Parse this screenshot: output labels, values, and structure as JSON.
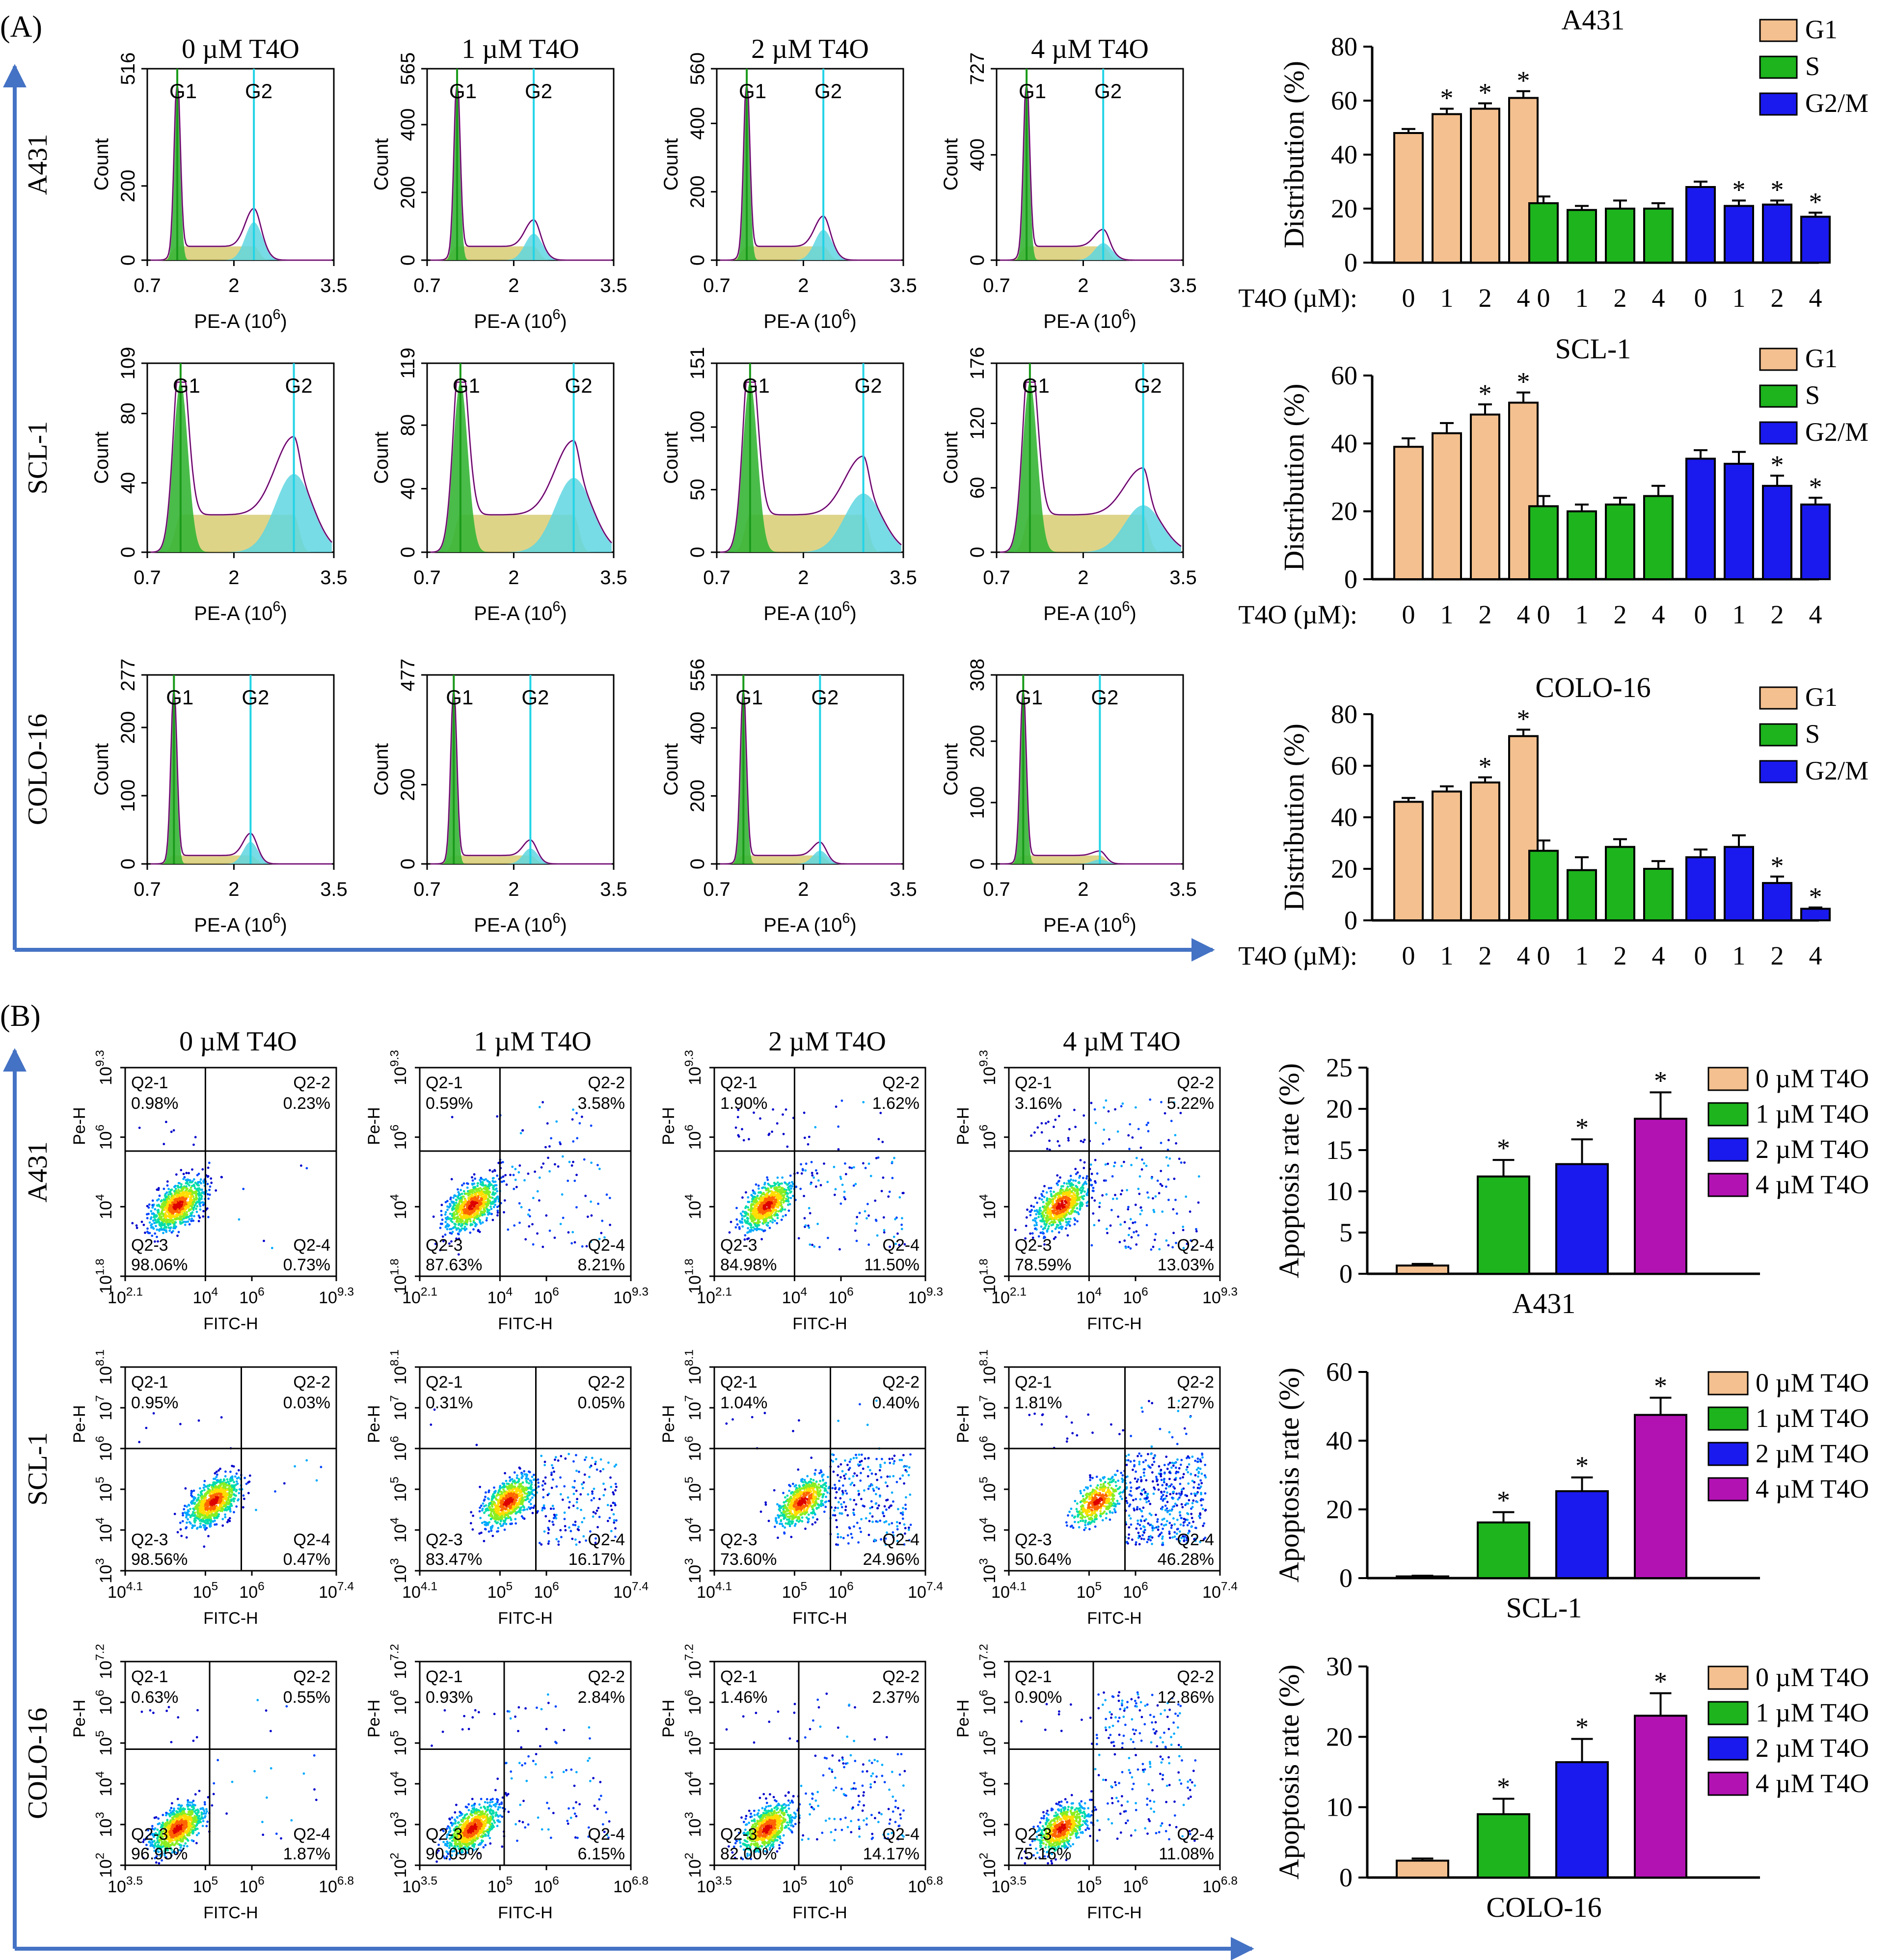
{
  "figure": {
    "panel_a_label": "(A)",
    "panel_b_label": "(B)",
    "colors": {
      "axis_arrow": "#4472c4",
      "G1": "#f4c08f",
      "S": "#1db41d",
      "G2M": "#1a1aee",
      "apop_0": "#f4c08f",
      "apop_1": "#1db41d",
      "apop_2": "#1a1aee",
      "apop_4": "#b312b3",
      "hist_g1": "#36b536",
      "hist_s": "#d6c96a",
      "hist_g2": "#5fd6e0",
      "hist_line": "#cc33cc"
    }
  },
  "cell_lines": [
    "A431",
    "SCL-1",
    "COLO-16"
  ],
  "doses": [
    "0 µM T4O",
    "1 µM T4O",
    "2 µM T4O",
    "4 µM T4O"
  ],
  "cell_cycle": {
    "xlabel": "PE-A  (10",
    "xlabel_exp": "6",
    "xlabel_close": ")",
    "ylabel": "Count",
    "x_ticks": [
      "0.7",
      "2",
      "3.5"
    ],
    "x_ticks_alt": [
      "0.7",
      "2",
      "3.5"
    ],
    "x_ticks_short": [
      "0.7",
      "2",
      "3.5"
    ],
    "peak_labels": [
      "G1",
      "G2"
    ],
    "y_ticks": [
      [
        [
          "516",
          "200",
          "0"
        ],
        [
          "565",
          "400",
          "200",
          "0"
        ],
        [
          "560",
          "400",
          "200",
          "0"
        ],
        [
          "727",
          "400",
          "0"
        ]
      ],
      [
        [
          "109",
          "80",
          "40",
          "0"
        ],
        [
          "119",
          "80",
          "40",
          "0"
        ],
        [
          "151",
          "100",
          "50",
          "0"
        ],
        [
          "176",
          "120",
          "60",
          "0"
        ]
      ],
      [
        [
          "277",
          "200",
          "100",
          "0"
        ],
        [
          "477",
          "200",
          "0"
        ],
        [
          "556",
          "400",
          "200",
          "0"
        ],
        [
          "308",
          "200",
          "100",
          "0"
        ]
      ]
    ]
  },
  "apoptosis_scatter": {
    "xlabel": "FITC-H",
    "ylabel": "Pe-H",
    "quadrant_names": [
      "Q2-1",
      "Q2-2",
      "Q2-3",
      "Q2-4"
    ],
    "x_ticks": [
      [
        "10",
        "10",
        "10",
        "10"
      ],
      [
        "10",
        "10",
        "10",
        "10"
      ],
      [
        "10",
        "10",
        "10",
        "10"
      ]
    ],
    "x_exps": [
      [
        "2.1",
        "4",
        "6",
        "9.3"
      ],
      [
        "4.1",
        "5",
        "6",
        "7.4"
      ],
      [
        "3.5",
        "5",
        "6",
        "6.8"
      ]
    ],
    "y_exps": [
      [
        "9.3",
        "6",
        "4",
        "1.8"
      ],
      [
        "8.1",
        "7",
        "6",
        "5",
        "4",
        "3"
      ],
      [
        "7.2",
        "6",
        "5",
        "4",
        "3",
        "2"
      ]
    ],
    "percentages": [
      [
        [
          "0.98%",
          "0.23%",
          "98.06%",
          "0.73%"
        ],
        [
          "0.59%",
          "3.58%",
          "87.63%",
          "8.21%"
        ],
        [
          "1.90%",
          "1.62%",
          "84.98%",
          "11.50%"
        ],
        [
          "3.16%",
          "5.22%",
          "78.59%",
          "13.03%"
        ]
      ],
      [
        [
          "0.95%",
          "0.03%",
          "98.56%",
          "0.47%"
        ],
        [
          "0.31%",
          "0.05%",
          "83.47%",
          "16.17%"
        ],
        [
          "1.04%",
          "0.40%",
          "73.60%",
          "24.96%"
        ],
        [
          "1.81%",
          "1.27%",
          "50.64%",
          "46.28%"
        ]
      ],
      [
        [
          "0.63%",
          "0.55%",
          "96.95%",
          "1.87%"
        ],
        [
          "0.93%",
          "2.84%",
          "90.09%",
          "6.15%"
        ],
        [
          "1.46%",
          "2.37%",
          "82.00%",
          "14.17%"
        ],
        [
          "0.90%",
          "12.86%",
          "75.16%",
          "11.08%"
        ]
      ]
    ]
  },
  "chart_data": [
    {
      "type": "bar",
      "title": "A431",
      "ylabel": "Distribution (%)",
      "xlabel": "T4O (µM):",
      "groups": [
        "G1",
        "S",
        "G2/M"
      ],
      "categories": [
        "0",
        "1",
        "2",
        "4"
      ],
      "ylim": [
        0,
        80
      ],
      "yticks": [
        0,
        20,
        40,
        60,
        80
      ],
      "series": [
        {
          "name": "G1",
          "values": [
            48,
            55,
            57,
            61
          ],
          "errors": [
            1.5,
            2,
            2,
            2.5
          ],
          "sig": [
            false,
            true,
            true,
            true
          ]
        },
        {
          "name": "S",
          "values": [
            22,
            19.5,
            20,
            20
          ],
          "errors": [
            2.5,
            1.5,
            3,
            2
          ],
          "sig": [
            false,
            false,
            false,
            false
          ]
        },
        {
          "name": "G2/M",
          "values": [
            28,
            21,
            21.5,
            17
          ],
          "errors": [
            2,
            2,
            1.5,
            1.5
          ],
          "sig": [
            false,
            true,
            true,
            true
          ]
        }
      ]
    },
    {
      "type": "bar",
      "title": "SCL-1",
      "ylabel": "Distribution (%)",
      "xlabel": "T4O (µM):",
      "groups": [
        "G1",
        "S",
        "G2/M"
      ],
      "categories": [
        "0",
        "1",
        "2",
        "4"
      ],
      "ylim": [
        0,
        60
      ],
      "yticks": [
        0,
        20,
        40,
        60
      ],
      "series": [
        {
          "name": "G1",
          "values": [
            39,
            43,
            48.5,
            52
          ],
          "errors": [
            2.5,
            3,
            3,
            3
          ],
          "sig": [
            false,
            false,
            true,
            true
          ]
        },
        {
          "name": "S",
          "values": [
            21.5,
            20,
            22,
            24.5
          ],
          "errors": [
            3,
            2,
            2,
            3
          ],
          "sig": [
            false,
            false,
            false,
            false
          ]
        },
        {
          "name": "G2/M",
          "values": [
            35.5,
            34,
            27.5,
            22
          ],
          "errors": [
            2.5,
            3.5,
            3,
            2
          ],
          "sig": [
            false,
            false,
            true,
            true
          ]
        }
      ]
    },
    {
      "type": "bar",
      "title": "COLO-16",
      "ylabel": "Distribution (%)",
      "xlabel": "T4O (µM):",
      "groups": [
        "G1",
        "S",
        "G2/M"
      ],
      "categories": [
        "0",
        "1",
        "2",
        "4"
      ],
      "ylim": [
        0,
        80
      ],
      "yticks": [
        0,
        20,
        40,
        60,
        80
      ],
      "series": [
        {
          "name": "G1",
          "values": [
            46,
            50,
            53.5,
            71.5
          ],
          "errors": [
            1.5,
            2,
            2,
            2.5
          ],
          "sig": [
            false,
            false,
            true,
            true
          ]
        },
        {
          "name": "S",
          "values": [
            27,
            19.5,
            28.5,
            20
          ],
          "errors": [
            4,
            5,
            3,
            3
          ],
          "sig": [
            false,
            false,
            false,
            false
          ]
        },
        {
          "name": "G2/M",
          "values": [
            24.5,
            28.5,
            14.5,
            4.5
          ],
          "errors": [
            3,
            4.5,
            2.5,
            0.5
          ],
          "sig": [
            false,
            false,
            true,
            true
          ]
        }
      ]
    },
    {
      "type": "bar",
      "title": "A431",
      "ylabel": "Apoptosis rate (%)",
      "categories": [
        "0 µM T4O",
        "1 µM T4O",
        "2 µM T4O",
        "4 µM T4O"
      ],
      "ylim": [
        0,
        25
      ],
      "yticks": [
        0,
        5,
        10,
        15,
        20,
        25
      ],
      "values": [
        1,
        11.8,
        13.3,
        18.8
      ],
      "errors": [
        0.2,
        2,
        3,
        3.2
      ],
      "sig": [
        false,
        true,
        true,
        true
      ]
    },
    {
      "type": "bar",
      "title": "SCL-1",
      "ylabel": "Apoptosis rate (%)",
      "categories": [
        "0 µM T4O",
        "1 µM T4O",
        "2 µM T4O",
        "4 µM T4O"
      ],
      "ylim": [
        0,
        60
      ],
      "yticks": [
        0,
        20,
        40,
        60
      ],
      "values": [
        0.5,
        16.2,
        25.3,
        47.5
      ],
      "errors": [
        0.2,
        3,
        4,
        5
      ],
      "sig": [
        false,
        true,
        true,
        true
      ]
    },
    {
      "type": "bar",
      "title": "COLO-16",
      "ylabel": "Apoptosis rate (%)",
      "categories": [
        "0 µM T4O",
        "1 µM T4O",
        "2 µM T4O",
        "4 µM T4O"
      ],
      "ylim": [
        0,
        30
      ],
      "yticks": [
        0,
        10,
        20,
        30
      ],
      "values": [
        2.4,
        9,
        16.4,
        23
      ],
      "errors": [
        0.3,
        2.2,
        3.3,
        3.2
      ],
      "sig": [
        false,
        true,
        true,
        true
      ]
    }
  ]
}
